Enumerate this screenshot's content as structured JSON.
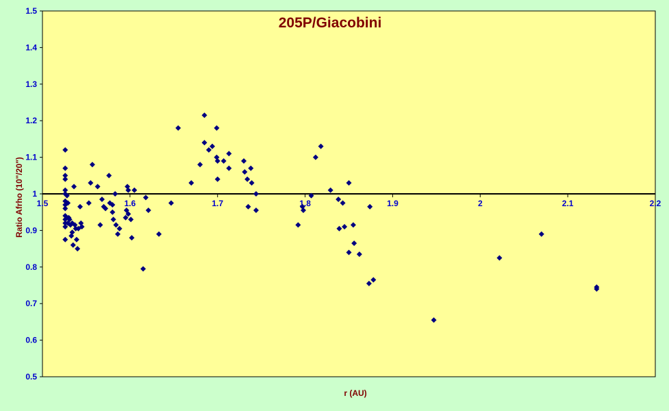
{
  "colors": {
    "page_background": "#ccffcc",
    "plot_background": "#ffff99",
    "marker": "#000080",
    "title": "#800000",
    "tick_labels": "#0000cc"
  },
  "chart_data": {
    "type": "scatter",
    "title": "205P/Giacobini",
    "xlabel": "r (AU)",
    "ylabel": "Ratio Afrho  (10\"/20\")",
    "xlim": [
      1.5,
      2.2
    ],
    "ylim": [
      0.5,
      1.5
    ],
    "x_ticks": [
      "1.5",
      "1.6",
      "1.7",
      "1.8",
      "1.9",
      "2",
      "2.1",
      "2.2"
    ],
    "y_ticks": [
      "0.5",
      "0.6",
      "0.7",
      "0.8",
      "0.9",
      "1",
      "1.1",
      "1.2",
      "1.3",
      "1.4",
      "1.5"
    ],
    "reference_line_y": 1.0,
    "grid": false,
    "legend": "none",
    "marker_shape": "diamond",
    "points": [
      [
        1.526,
        1.12
      ],
      [
        1.526,
        1.07
      ],
      [
        1.526,
        1.05
      ],
      [
        1.526,
        1.04
      ],
      [
        1.526,
        1.01
      ],
      [
        1.526,
        1.0
      ],
      [
        1.526,
        0.98
      ],
      [
        1.526,
        0.97
      ],
      [
        1.526,
        0.96
      ],
      [
        1.526,
        0.94
      ],
      [
        1.526,
        0.93
      ],
      [
        1.526,
        0.92
      ],
      [
        1.526,
        0.91
      ],
      [
        1.526,
        0.875
      ],
      [
        1.528,
        0.995
      ],
      [
        1.529,
        0.975
      ],
      [
        1.529,
        0.92
      ],
      [
        1.53,
        0.935
      ],
      [
        1.531,
        0.93
      ],
      [
        1.532,
        0.915
      ],
      [
        1.533,
        0.885
      ],
      [
        1.534,
        0.92
      ],
      [
        1.534,
        0.895
      ],
      [
        1.535,
        0.86
      ],
      [
        1.536,
        1.02
      ],
      [
        1.537,
        0.915
      ],
      [
        1.538,
        0.905
      ],
      [
        1.539,
        0.875
      ],
      [
        1.54,
        0.85
      ],
      [
        1.541,
        0.905
      ],
      [
        1.543,
        0.965
      ],
      [
        1.544,
        0.92
      ],
      [
        1.545,
        0.91
      ],
      [
        1.553,
        0.975
      ],
      [
        1.555,
        1.03
      ],
      [
        1.557,
        1.08
      ],
      [
        1.563,
        1.02
      ],
      [
        1.566,
        0.915
      ],
      [
        1.568,
        0.985
      ],
      [
        1.57,
        0.965
      ],
      [
        1.572,
        0.96
      ],
      [
        1.576,
        1.05
      ],
      [
        1.577,
        0.975
      ],
      [
        1.58,
        0.97
      ],
      [
        1.58,
        0.95
      ],
      [
        1.581,
        0.93
      ],
      [
        1.583,
        1.0
      ],
      [
        1.584,
        0.915
      ],
      [
        1.586,
        0.89
      ],
      [
        1.588,
        0.905
      ],
      [
        1.595,
        0.935
      ],
      [
        1.596,
        0.955
      ],
      [
        1.597,
        1.02
      ],
      [
        1.598,
        1.01
      ],
      [
        1.598,
        0.945
      ],
      [
        1.601,
        0.93
      ],
      [
        1.602,
        0.88
      ],
      [
        1.605,
        1.01
      ],
      [
        1.615,
        0.795
      ],
      [
        1.618,
        0.99
      ],
      [
        1.621,
        0.955
      ],
      [
        1.633,
        0.89
      ],
      [
        1.647,
        0.975
      ],
      [
        1.655,
        1.18
      ],
      [
        1.67,
        1.03
      ],
      [
        1.68,
        1.08
      ],
      [
        1.685,
        1.215
      ],
      [
        1.685,
        1.14
      ],
      [
        1.69,
        1.12
      ],
      [
        1.694,
        1.13
      ],
      [
        1.699,
        1.18
      ],
      [
        1.699,
        1.1
      ],
      [
        1.7,
        1.09
      ],
      [
        1.7,
        1.04
      ],
      [
        1.707,
        1.09
      ],
      [
        1.713,
        1.11
      ],
      [
        1.713,
        1.07
      ],
      [
        1.73,
        1.09
      ],
      [
        1.731,
        1.06
      ],
      [
        1.734,
        1.04
      ],
      [
        1.735,
        0.965
      ],
      [
        1.738,
        1.07
      ],
      [
        1.739,
        1.03
      ],
      [
        1.744,
        1.0
      ],
      [
        1.744,
        0.955
      ],
      [
        1.792,
        0.915
      ],
      [
        1.797,
        0.965
      ],
      [
        1.798,
        0.955
      ],
      [
        1.807,
        0.995
      ],
      [
        1.812,
        1.1
      ],
      [
        1.818,
        1.13
      ],
      [
        1.829,
        1.01
      ],
      [
        1.838,
        0.985
      ],
      [
        1.839,
        0.905
      ],
      [
        1.843,
        0.975
      ],
      [
        1.845,
        0.91
      ],
      [
        1.85,
        0.84
      ],
      [
        1.85,
        1.03
      ],
      [
        1.855,
        0.915
      ],
      [
        1.856,
        0.865
      ],
      [
        1.862,
        0.835
      ],
      [
        1.873,
        0.755
      ],
      [
        1.874,
        0.965
      ],
      [
        1.878,
        0.765
      ],
      [
        1.947,
        0.655
      ],
      [
        2.022,
        0.825
      ],
      [
        2.07,
        0.89
      ],
      [
        2.133,
        0.745
      ],
      [
        2.133,
        0.74
      ]
    ]
  }
}
